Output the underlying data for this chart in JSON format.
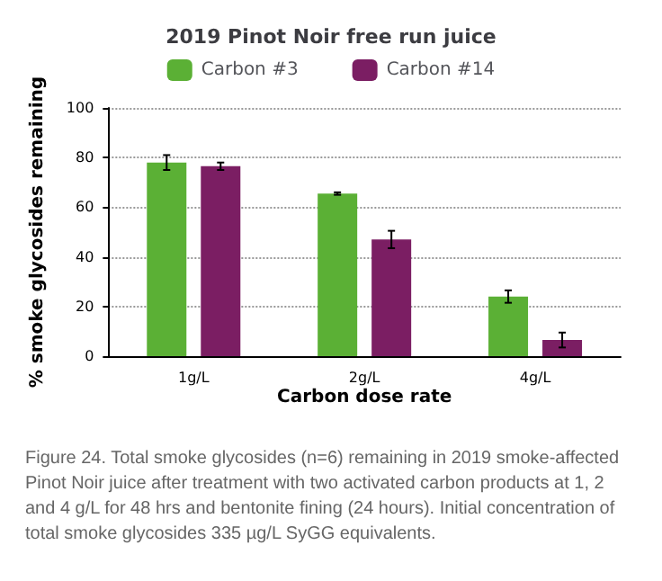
{
  "chart_data": {
    "type": "bar",
    "title": "2019 Pinot Noir free run juice",
    "categories": [
      "1g/L",
      "2g/L",
      "4g/L"
    ],
    "series": [
      {
        "name": "Carbon #3",
        "color": "#5bb035",
        "values": [
          78,
          65.5,
          24
        ],
        "errors": [
          3,
          0.5,
          2.5
        ]
      },
      {
        "name": "Carbon #14",
        "color": "#7b1e63",
        "values": [
          76.5,
          47,
          6.5
        ],
        "errors": [
          1.5,
          3.5,
          3
        ]
      }
    ],
    "xlabel": "Carbon dose rate",
    "ylabel": "% smoke glycosides remaining",
    "ylim": [
      0,
      100
    ],
    "yticks": [
      0,
      20,
      40,
      60,
      80,
      100
    ],
    "grid": "y",
    "legend": "top",
    "annotations": [
      "Figure 24. Total smoke glycosides (n=6) remaining in 2019 smoke-affected Pinot Noir juice after treatment with two activated carbon products at 1, 2 and 4 g/L for 48 hrs and bentonite fining (24 hours). Initial concentration of total smoke glycosides 335 µg/L SyGG equivalents."
    ]
  }
}
